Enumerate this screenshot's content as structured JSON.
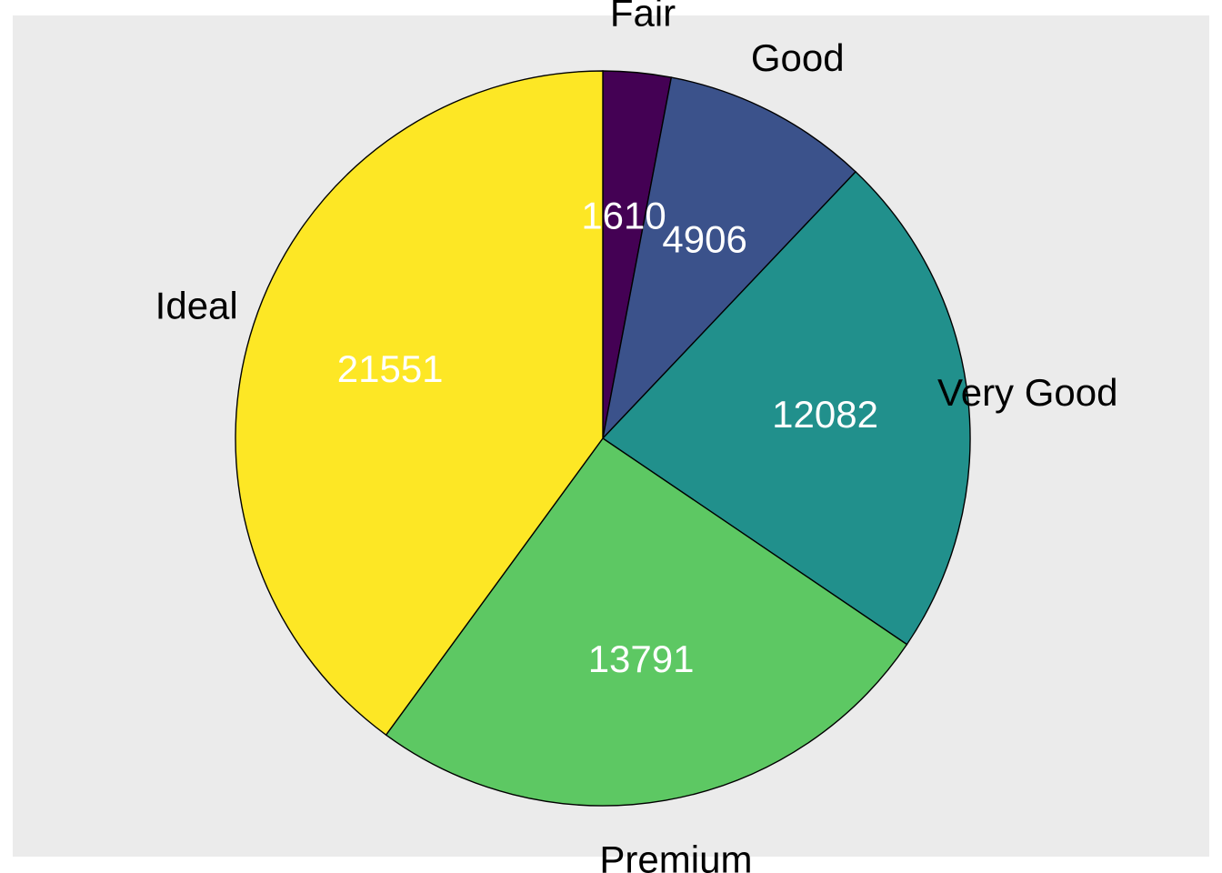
{
  "chart_data": {
    "type": "pie",
    "categories": [
      "Fair",
      "Good",
      "Very Good",
      "Premium",
      "Ideal"
    ],
    "values": [
      1610,
      4906,
      12082,
      13791,
      21551
    ],
    "colors": [
      "#440154",
      "#3B528B",
      "#21908C",
      "#5DC863",
      "#FDE725"
    ],
    "background_color": "#EBEBEB",
    "start_angle_deg": 0,
    "direction": "clockwise",
    "legend": "none"
  }
}
